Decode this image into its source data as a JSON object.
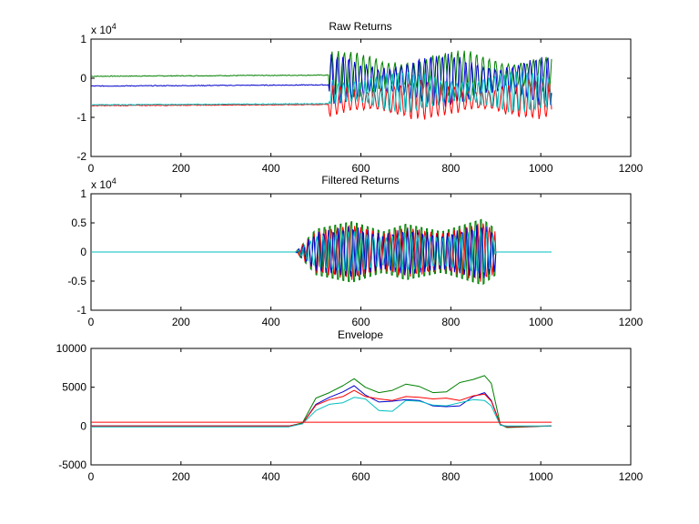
{
  "chart_data": [
    {
      "type": "line",
      "title": "Raw Returns",
      "exponent_label": "x 10",
      "exponent_power": "4",
      "xlim": [
        0,
        1200
      ],
      "ylim": [
        -2,
        1
      ],
      "x_ticks": [
        "0",
        "200",
        "400",
        "600",
        "800",
        "1000",
        "1200"
      ],
      "y_ticks": [
        "1",
        "0",
        "-1",
        "-2"
      ],
      "x_tick_values": [
        0,
        200,
        400,
        600,
        800,
        1000,
        1200
      ],
      "y_tick_values": [
        1,
        0,
        -1,
        -2
      ],
      "series": [
        {
          "color": "#008000",
          "baseline": 0.05,
          "onset": 530,
          "end": 1024,
          "amp": 0.55,
          "center": 0.1,
          "period": 14
        },
        {
          "color": "#0000cc",
          "baseline": -0.2,
          "onset": 530,
          "end": 1024,
          "amp": 0.6,
          "center": -0.05,
          "period": 13
        },
        {
          "color": "#ff0000",
          "baseline": -0.7,
          "onset": 530,
          "end": 1024,
          "amp": 0.45,
          "center": -0.55,
          "period": 15
        },
        {
          "color": "#00bfbf",
          "baseline": -0.68,
          "onset": 530,
          "end": 1024,
          "amp": 0.5,
          "center": -0.35,
          "period": 12
        }
      ]
    },
    {
      "type": "line",
      "title": "Filtered Returns",
      "exponent_label": "x 10",
      "exponent_power": "4",
      "xlim": [
        0,
        1200
      ],
      "ylim": [
        -1,
        1
      ],
      "x_ticks": [
        "0",
        "200",
        "400",
        "600",
        "800",
        "1000",
        "1200"
      ],
      "y_ticks": [
        "1",
        "0.5",
        "0",
        "-0.5",
        "-1"
      ],
      "x_tick_values": [
        0,
        200,
        400,
        600,
        800,
        1000,
        1200
      ],
      "y_tick_values": [
        1,
        0.5,
        0,
        -0.5,
        -1
      ],
      "series": [
        {
          "color": "#008000",
          "onset": 455,
          "end": 900,
          "scale": 1.0,
          "period": 12
        },
        {
          "color": "#ff0000",
          "onset": 455,
          "end": 900,
          "scale": 0.8,
          "period": 13
        },
        {
          "color": "#0000cc",
          "onset": 455,
          "end": 900,
          "scale": 0.75,
          "period": 11
        },
        {
          "color": "#00bfbf",
          "onset": 455,
          "end": 900,
          "scale": 0.6,
          "period": 14
        }
      ],
      "trace_end": 1024
    },
    {
      "type": "line",
      "title": "Envelope",
      "xlim": [
        0,
        1200
      ],
      "ylim": [
        -5000,
        10000
      ],
      "x_ticks": [
        "0",
        "200",
        "400",
        "600",
        "800",
        "1000",
        "1200"
      ],
      "y_ticks": [
        "10000",
        "5000",
        "0",
        "-5000"
      ],
      "x_tick_values": [
        0,
        200,
        400,
        600,
        800,
        1000,
        1200
      ],
      "y_tick_values": [
        10000,
        5000,
        0,
        -5000
      ],
      "threshold": {
        "color": "#ff0000",
        "value": 500,
        "x": [
          0,
          1024
        ]
      },
      "series": [
        {
          "color": "#008000",
          "x": [
            0,
            440,
            470,
            500,
            530,
            560,
            585,
            610,
            640,
            670,
            700,
            730,
            760,
            790,
            820,
            850,
            875,
            890,
            910,
            925,
            1024
          ],
          "y": [
            0,
            0,
            400,
            3600,
            4300,
            5200,
            6100,
            5000,
            4300,
            4600,
            5400,
            5100,
            4300,
            4400,
            5600,
            6000,
            6500,
            5500,
            200,
            -200,
            0
          ]
        },
        {
          "color": "#0000cc",
          "x": [
            0,
            440,
            470,
            500,
            530,
            560,
            585,
            610,
            640,
            670,
            700,
            730,
            760,
            790,
            820,
            850,
            875,
            890,
            910,
            925,
            1024
          ],
          "y": [
            0,
            0,
            300,
            2800,
            3700,
            4400,
            5200,
            4000,
            3100,
            3200,
            3400,
            3300,
            2600,
            2500,
            2600,
            3800,
            4300,
            3300,
            200,
            -100,
            0
          ]
        },
        {
          "color": "#ff0000",
          "x": [
            0,
            440,
            470,
            500,
            530,
            560,
            585,
            610,
            640,
            670,
            700,
            730,
            760,
            790,
            820,
            850,
            875,
            890,
            910,
            925,
            1024
          ],
          "y": [
            0,
            0,
            300,
            2700,
            3400,
            3800,
            4600,
            3800,
            3500,
            3300,
            3800,
            3700,
            3500,
            3600,
            3300,
            3900,
            4100,
            3200,
            200,
            -100,
            0
          ]
        },
        {
          "color": "#00bfbf",
          "x": [
            0,
            440,
            470,
            500,
            530,
            560,
            585,
            610,
            640,
            670,
            700,
            730,
            760,
            790,
            820,
            850,
            875,
            890,
            910,
            925,
            1024
          ],
          "y": [
            -100,
            -100,
            300,
            2000,
            2800,
            3000,
            3700,
            3500,
            2000,
            1900,
            3300,
            3200,
            2700,
            2600,
            3000,
            3400,
            3300,
            2600,
            100,
            0,
            0
          ]
        }
      ]
    }
  ]
}
